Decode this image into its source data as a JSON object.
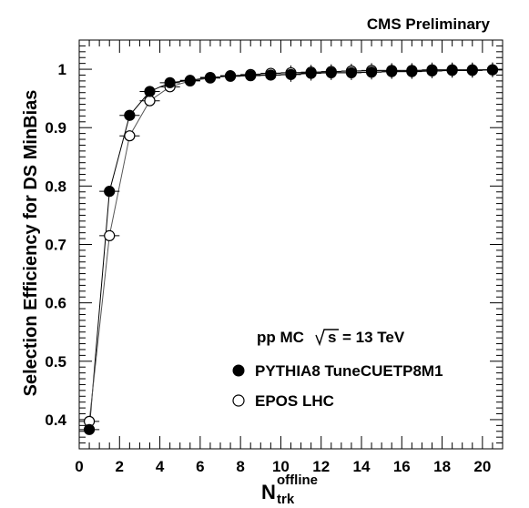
{
  "chart_data": {
    "type": "scatter",
    "header": "CMS Preliminary",
    "xlabel_main": "N",
    "xlabel_sup": "offline",
    "xlabel_sub": "trk",
    "ylabel": "Selection Efficiency for DS MinBias",
    "xlim": [
      0,
      21
    ],
    "ylim": [
      0.35,
      1.05
    ],
    "x_ticks": [
      0,
      2,
      4,
      6,
      8,
      10,
      12,
      14,
      16,
      18,
      20
    ],
    "x_tick_labels": [
      "0",
      "2",
      "4",
      "6",
      "8",
      "10",
      "12",
      "14",
      "16",
      "18",
      "20"
    ],
    "y_ticks": [
      0.4,
      0.5,
      0.6,
      0.7,
      0.8,
      0.9,
      1.0
    ],
    "y_tick_labels": [
      "0.4",
      "0.5",
      "0.6",
      "0.7",
      "0.8",
      "0.9",
      "1"
    ],
    "legend_header_pre": "pp MC",
    "legend_header_sqrt": "s",
    "legend_header_post": "= 13 TeV",
    "legend_placement": "bottom-right",
    "grid": false,
    "series": [
      {
        "name": "PYTHIA8 TuneCUETP8M1",
        "marker": "filled-circle",
        "color": "#000000",
        "x": [
          0.5,
          1.5,
          2.5,
          3.5,
          4.5,
          5.5,
          6.5,
          7.5,
          8.5,
          9.5,
          10.5,
          11.5,
          12.5,
          13.5,
          14.5,
          15.5,
          16.5,
          17.5,
          18.5,
          19.5,
          20.5
        ],
        "y": [
          0.383,
          0.791,
          0.921,
          0.962,
          0.977,
          0.981,
          0.986,
          0.988,
          0.989,
          0.99,
          0.991,
          0.993,
          0.994,
          0.994,
          0.995,
          0.996,
          0.996,
          0.997,
          0.998,
          0.998,
          0.999
        ]
      },
      {
        "name": "EPOS LHC",
        "marker": "open-circle",
        "color": "#000000",
        "x": [
          0.5,
          1.5,
          2.5,
          3.5,
          4.5,
          5.5,
          6.5,
          7.5,
          8.5,
          9.5,
          10.5,
          11.5,
          12.5,
          13.5,
          14.5,
          15.5,
          16.5,
          17.5,
          18.5,
          19.5,
          20.5
        ],
        "y": [
          0.397,
          0.715,
          0.886,
          0.946,
          0.97,
          0.98,
          0.985,
          0.989,
          0.991,
          0.993,
          0.994,
          0.995,
          0.996,
          0.997,
          0.998,
          0.998,
          0.998,
          0.999,
          0.999,
          0.999,
          0.999
        ]
      }
    ]
  }
}
